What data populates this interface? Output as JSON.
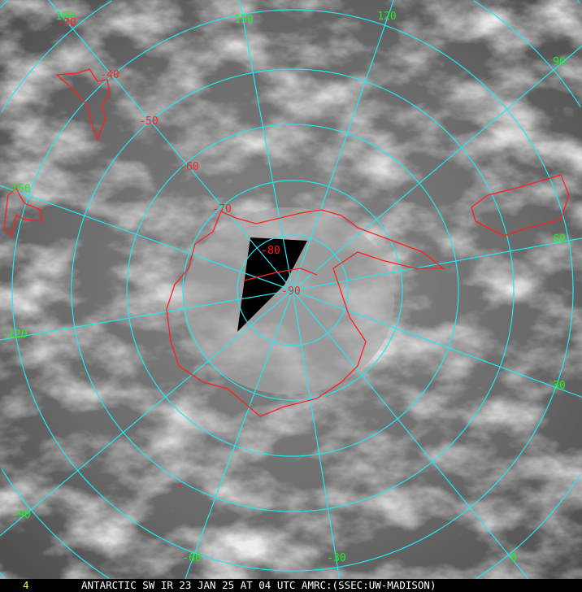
{
  "image": {
    "caption": "ANTARCTIC SW IR 23 JAN 25 AT 04 UTC AMRC:(SSEC:UW-MADISON)",
    "frame_number": "4",
    "colors": {
      "grid": "#22e6f0",
      "coastline": "#ff2020",
      "longitude_labels": "#22ee22",
      "latitude_labels": "#ff2020",
      "caption_text": "#ffffff",
      "frame_number": "#ffff33"
    },
    "longitude_labels": [
      {
        "id": "lon-180",
        "text": "180"
      },
      {
        "id": "lon-150",
        "text": "150"
      },
      {
        "id": "lon-120",
        "text": "120"
      },
      {
        "id": "lon-90",
        "text": "90"
      },
      {
        "id": "lon-60",
        "text": "60"
      },
      {
        "id": "lon-30",
        "text": "30"
      },
      {
        "id": "lon-0",
        "text": "0"
      },
      {
        "id": "lon-m30",
        "text": "-30"
      },
      {
        "id": "lon-m60",
        "text": "-60"
      },
      {
        "id": "lon-m90",
        "text": "-90"
      },
      {
        "id": "lon-m120",
        "text": "-120"
      },
      {
        "id": "lon-m150",
        "text": "-150"
      }
    ],
    "latitude_labels": [
      {
        "id": "lat-30",
        "text": "-30"
      },
      {
        "id": "lat-40",
        "text": "-40"
      },
      {
        "id": "lat-50",
        "text": "-50"
      },
      {
        "id": "lat-60",
        "text": "-60"
      },
      {
        "id": "lat-70",
        "text": "-70"
      },
      {
        "id": "lat-80",
        "text": "-80"
      },
      {
        "id": "lat-90",
        "text": "-90"
      }
    ]
  }
}
